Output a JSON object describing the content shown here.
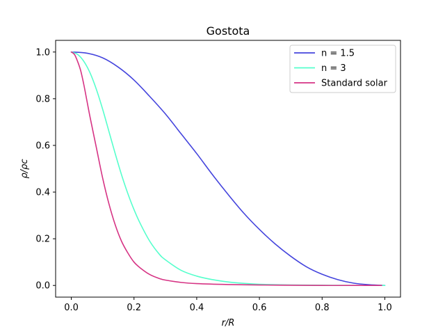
{
  "chart_data": {
    "type": "line",
    "title": "Gostota",
    "xlabel": "r/R",
    "ylabel": "ρ/ρc",
    "xlim": [
      -0.05,
      1.05
    ],
    "ylim": [
      -0.05,
      1.05
    ],
    "xticks": [
      0.0,
      0.2,
      0.4,
      0.6,
      0.8,
      1.0
    ],
    "xtick_labels": [
      "0.0",
      "0.2",
      "0.4",
      "0.6",
      "0.8",
      "1.0"
    ],
    "yticks": [
      0.0,
      0.2,
      0.4,
      0.6,
      0.8,
      1.0
    ],
    "ytick_labels": [
      "0.0",
      "0.2",
      "0.4",
      "0.6",
      "0.8",
      "1.0"
    ],
    "grid": false,
    "legend_position": "top-right",
    "series": [
      {
        "name": "n = 1.5",
        "legend_label": "n = 1.5",
        "color": "#4444dd",
        "x": [
          0,
          0.05,
          0.1,
          0.15,
          0.2,
          0.25,
          0.3,
          0.35,
          0.4,
          0.45,
          0.5,
          0.55,
          0.6,
          0.65,
          0.7,
          0.75,
          0.8,
          0.85,
          0.9,
          0.95,
          1.0
        ],
        "y": [
          1.0,
          0.995,
          0.975,
          0.935,
          0.88,
          0.81,
          0.735,
          0.65,
          0.565,
          0.475,
          0.39,
          0.31,
          0.24,
          0.178,
          0.125,
          0.08,
          0.048,
          0.025,
          0.01,
          0.003,
          0.0
        ]
      },
      {
        "name": "n = 3",
        "legend_label": "n = 3",
        "color": "#55ffcc",
        "x": [
          0,
          0.02,
          0.04,
          0.06,
          0.08,
          0.1,
          0.12,
          0.14,
          0.16,
          0.18,
          0.2,
          0.22,
          0.25,
          0.28,
          0.3,
          0.35,
          0.4,
          0.45,
          0.5,
          0.55,
          0.6,
          0.7,
          0.8,
          0.9,
          1.0
        ],
        "y": [
          1.0,
          0.99,
          0.96,
          0.91,
          0.84,
          0.755,
          0.66,
          0.565,
          0.475,
          0.395,
          0.325,
          0.265,
          0.19,
          0.135,
          0.11,
          0.065,
          0.04,
          0.025,
          0.015,
          0.009,
          0.005,
          0.002,
          0.001,
          0.0,
          0.0
        ]
      },
      {
        "name": "Standard solar",
        "legend_label": "Standard solar",
        "color": "#d63384",
        "x": [
          0,
          0.01,
          0.02,
          0.03,
          0.04,
          0.05,
          0.06,
          0.08,
          0.1,
          0.12,
          0.14,
          0.16,
          0.18,
          0.2,
          0.22,
          0.25,
          0.28,
          0.3,
          0.35,
          0.4,
          0.5,
          0.6,
          0.7,
          0.8,
          0.9,
          0.99
        ],
        "y": [
          1.0,
          0.99,
          0.96,
          0.92,
          0.86,
          0.79,
          0.72,
          0.59,
          0.46,
          0.35,
          0.26,
          0.19,
          0.14,
          0.1,
          0.075,
          0.047,
          0.03,
          0.023,
          0.013,
          0.008,
          0.004,
          0.002,
          0.001,
          0.0,
          0.0,
          0.0
        ]
      }
    ]
  }
}
